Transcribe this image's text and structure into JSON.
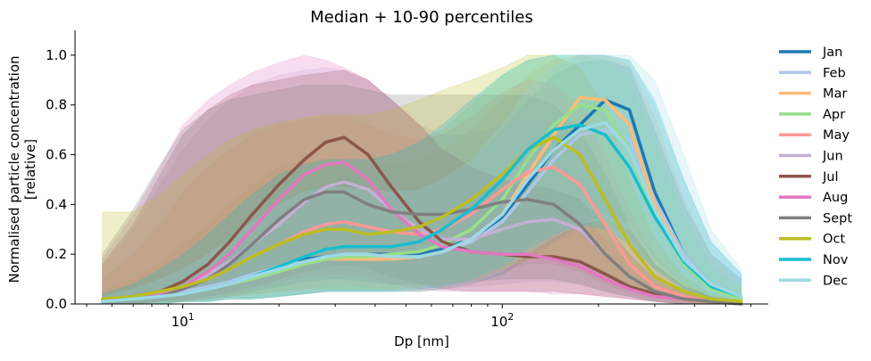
{
  "chart_data": {
    "type": "area",
    "title": "Median + 10-90 percentiles",
    "xlabel": "Dp [nm]",
    "ylabel": "Normalised particle concentration",
    "ylabel2": "[relative]",
    "xscale": "log",
    "xlim": [
      4.6,
      680
    ],
    "ylim": [
      0,
      1.1
    ],
    "yticks": [
      "0.0",
      "0.2",
      "0.4",
      "0.6",
      "0.8",
      "1.0"
    ],
    "xticks": [
      {
        "base": "10",
        "exp": "1"
      },
      {
        "base": "10",
        "exp": "2"
      }
    ],
    "legend_position": "right",
    "grid": false,
    "x": [
      5.6,
      7,
      8.5,
      10,
      12,
      14,
      16.5,
      20,
      24,
      28,
      32,
      38,
      45,
      55,
      65,
      80,
      100,
      120,
      145,
      175,
      210,
      250,
      300,
      370,
      450,
      560
    ],
    "series": [
      {
        "name": "Jan",
        "color": "#1f77b4",
        "median": [
          0.01,
          0.02,
          0.03,
          0.05,
          0.07,
          0.09,
          0.12,
          0.15,
          0.18,
          0.19,
          0.2,
          0.2,
          0.2,
          0.2,
          0.22,
          0.26,
          0.35,
          0.48,
          0.62,
          0.72,
          0.82,
          0.78,
          0.45,
          0.2,
          0.08,
          0.03
        ],
        "p10": [
          0.0,
          0.0,
          0.0,
          0.01,
          0.01,
          0.02,
          0.02,
          0.03,
          0.04,
          0.05,
          0.05,
          0.05,
          0.05,
          0.05,
          0.06,
          0.08,
          0.12,
          0.18,
          0.25,
          0.32,
          0.36,
          0.33,
          0.18,
          0.08,
          0.02,
          0.01
        ],
        "p90": [
          0.03,
          0.06,
          0.1,
          0.14,
          0.2,
          0.26,
          0.33,
          0.4,
          0.45,
          0.48,
          0.48,
          0.46,
          0.45,
          0.46,
          0.5,
          0.58,
          0.7,
          0.82,
          0.92,
          0.97,
          0.98,
          0.95,
          0.7,
          0.4,
          0.2,
          0.1
        ]
      },
      {
        "name": "Feb",
        "color": "#aec7e8",
        "median": [
          0.01,
          0.02,
          0.03,
          0.05,
          0.07,
          0.09,
          0.12,
          0.15,
          0.17,
          0.18,
          0.19,
          0.19,
          0.19,
          0.19,
          0.21,
          0.25,
          0.33,
          0.45,
          0.58,
          0.68,
          0.7,
          0.66,
          0.42,
          0.2,
          0.08,
          0.03
        ],
        "p10": [
          0.0,
          0.0,
          0.0,
          0.01,
          0.01,
          0.02,
          0.02,
          0.03,
          0.04,
          0.05,
          0.05,
          0.05,
          0.05,
          0.05,
          0.06,
          0.08,
          0.12,
          0.18,
          0.24,
          0.3,
          0.34,
          0.32,
          0.18,
          0.08,
          0.03,
          0.01
        ],
        "p90": [
          0.03,
          0.06,
          0.1,
          0.14,
          0.2,
          0.26,
          0.33,
          0.4,
          0.45,
          0.47,
          0.47,
          0.46,
          0.45,
          0.46,
          0.5,
          0.58,
          0.72,
          0.85,
          0.95,
          1.0,
          1.0,
          0.98,
          0.8,
          0.5,
          0.25,
          0.12
        ]
      },
      {
        "name": "Mar",
        "color": "#ffbb78",
        "median": [
          0.01,
          0.02,
          0.03,
          0.04,
          0.06,
          0.08,
          0.1,
          0.13,
          0.16,
          0.18,
          0.18,
          0.18,
          0.18,
          0.19,
          0.21,
          0.26,
          0.36,
          0.52,
          0.68,
          0.83,
          0.82,
          0.72,
          0.4,
          0.18,
          0.07,
          0.02
        ],
        "p10": [
          0.0,
          0.0,
          0.0,
          0.01,
          0.01,
          0.02,
          0.02,
          0.03,
          0.04,
          0.05,
          0.05,
          0.05,
          0.05,
          0.05,
          0.06,
          0.08,
          0.13,
          0.2,
          0.28,
          0.36,
          0.38,
          0.33,
          0.17,
          0.07,
          0.02,
          0.01
        ],
        "p90": [
          0.05,
          0.1,
          0.16,
          0.24,
          0.32,
          0.4,
          0.48,
          0.55,
          0.58,
          0.58,
          0.58,
          0.57,
          0.56,
          0.58,
          0.62,
          0.7,
          0.82,
          0.92,
          0.98,
          1.0,
          1.0,
          0.96,
          0.75,
          0.42,
          0.2,
          0.08
        ]
      },
      {
        "name": "Apr",
        "color": "#98df8a",
        "median": [
          0.01,
          0.02,
          0.03,
          0.04,
          0.06,
          0.08,
          0.1,
          0.13,
          0.16,
          0.18,
          0.19,
          0.19,
          0.2,
          0.21,
          0.24,
          0.3,
          0.42,
          0.58,
          0.72,
          0.8,
          0.78,
          0.62,
          0.35,
          0.16,
          0.06,
          0.02
        ],
        "p10": [
          0.0,
          0.0,
          0.0,
          0.01,
          0.01,
          0.02,
          0.02,
          0.03,
          0.04,
          0.05,
          0.05,
          0.05,
          0.05,
          0.06,
          0.07,
          0.1,
          0.16,
          0.24,
          0.32,
          0.36,
          0.34,
          0.27,
          0.14,
          0.06,
          0.02,
          0.01
        ],
        "p90": [
          0.04,
          0.08,
          0.13,
          0.2,
          0.28,
          0.36,
          0.44,
          0.52,
          0.56,
          0.58,
          0.58,
          0.58,
          0.6,
          0.64,
          0.7,
          0.8,
          0.92,
          0.98,
          1.0,
          1.0,
          0.98,
          0.9,
          0.65,
          0.35,
          0.15,
          0.06
        ]
      },
      {
        "name": "May",
        "color": "#ff9896",
        "median": [
          0.01,
          0.02,
          0.04,
          0.06,
          0.1,
          0.14,
          0.19,
          0.24,
          0.29,
          0.32,
          0.33,
          0.31,
          0.29,
          0.28,
          0.3,
          0.36,
          0.46,
          0.53,
          0.55,
          0.48,
          0.32,
          0.16,
          0.07,
          0.03,
          0.01,
          0.0
        ],
        "p10": [
          0.0,
          0.0,
          0.01,
          0.01,
          0.02,
          0.03,
          0.04,
          0.05,
          0.06,
          0.07,
          0.07,
          0.07,
          0.06,
          0.06,
          0.07,
          0.09,
          0.13,
          0.16,
          0.16,
          0.13,
          0.08,
          0.04,
          0.02,
          0.01,
          0.0,
          0.0
        ],
        "p90": [
          0.1,
          0.2,
          0.32,
          0.45,
          0.55,
          0.62,
          0.68,
          0.72,
          0.74,
          0.75,
          0.75,
          0.72,
          0.68,
          0.66,
          0.68,
          0.75,
          0.85,
          0.9,
          0.88,
          0.8,
          0.6,
          0.38,
          0.2,
          0.08,
          0.03,
          0.01
        ]
      },
      {
        "name": "Jun",
        "color": "#c5b0d5",
        "median": [
          0.01,
          0.02,
          0.04,
          0.07,
          0.12,
          0.17,
          0.24,
          0.32,
          0.41,
          0.47,
          0.49,
          0.46,
          0.38,
          0.3,
          0.26,
          0.26,
          0.3,
          0.33,
          0.34,
          0.3,
          0.2,
          0.11,
          0.05,
          0.02,
          0.01,
          0.0
        ],
        "p10": [
          0.0,
          0.0,
          0.01,
          0.01,
          0.02,
          0.04,
          0.05,
          0.07,
          0.09,
          0.1,
          0.1,
          0.09,
          0.08,
          0.07,
          0.06,
          0.07,
          0.08,
          0.09,
          0.09,
          0.08,
          0.05,
          0.03,
          0.01,
          0.0,
          0.0,
          0.0
        ],
        "p90": [
          0.15,
          0.3,
          0.48,
          0.62,
          0.74,
          0.82,
          0.88,
          0.92,
          0.94,
          0.95,
          0.94,
          0.9,
          0.82,
          0.72,
          0.68,
          0.68,
          0.72,
          0.74,
          0.72,
          0.64,
          0.48,
          0.3,
          0.16,
          0.07,
          0.03,
          0.01
        ]
      },
      {
        "name": "Jul",
        "color": "#8c564b",
        "median": [
          0.01,
          0.03,
          0.05,
          0.09,
          0.16,
          0.25,
          0.36,
          0.48,
          0.58,
          0.65,
          0.67,
          0.6,
          0.47,
          0.33,
          0.25,
          0.21,
          0.2,
          0.19,
          0.19,
          0.17,
          0.12,
          0.07,
          0.04,
          0.02,
          0.01,
          0.0
        ],
        "p10": [
          0.0,
          0.0,
          0.01,
          0.02,
          0.03,
          0.05,
          0.07,
          0.1,
          0.13,
          0.15,
          0.16,
          0.14,
          0.11,
          0.08,
          0.06,
          0.05,
          0.05,
          0.05,
          0.05,
          0.04,
          0.03,
          0.02,
          0.01,
          0.0,
          0.0,
          0.0
        ],
        "p90": [
          0.16,
          0.32,
          0.52,
          0.68,
          0.78,
          0.84,
          0.88,
          0.9,
          0.92,
          0.93,
          0.94,
          0.9,
          0.82,
          0.72,
          0.62,
          0.55,
          0.5,
          0.48,
          0.46,
          0.42,
          0.32,
          0.2,
          0.1,
          0.05,
          0.02,
          0.01
        ]
      },
      {
        "name": "Aug",
        "color": "#e377c2",
        "median": [
          0.01,
          0.02,
          0.04,
          0.07,
          0.13,
          0.2,
          0.3,
          0.42,
          0.52,
          0.56,
          0.57,
          0.5,
          0.38,
          0.28,
          0.23,
          0.21,
          0.2,
          0.2,
          0.18,
          0.15,
          0.1,
          0.06,
          0.03,
          0.02,
          0.01,
          0.0
        ],
        "p10": [
          0.0,
          0.0,
          0.01,
          0.01,
          0.03,
          0.04,
          0.06,
          0.09,
          0.11,
          0.12,
          0.12,
          0.11,
          0.08,
          0.06,
          0.05,
          0.05,
          0.05,
          0.05,
          0.04,
          0.04,
          0.03,
          0.02,
          0.01,
          0.0,
          0.0,
          0.0
        ],
        "p90": [
          0.18,
          0.36,
          0.55,
          0.72,
          0.82,
          0.88,
          0.93,
          0.97,
          1.0,
          0.98,
          0.95,
          0.9,
          0.82,
          0.72,
          0.62,
          0.55,
          0.5,
          0.46,
          0.42,
          0.36,
          0.26,
          0.16,
          0.08,
          0.04,
          0.02,
          0.01
        ]
      },
      {
        "name": "Sept",
        "color": "#7f7f7f",
        "median": [
          0.01,
          0.02,
          0.03,
          0.06,
          0.1,
          0.16,
          0.24,
          0.34,
          0.42,
          0.45,
          0.45,
          0.4,
          0.37,
          0.36,
          0.36,
          0.38,
          0.41,
          0.42,
          0.4,
          0.32,
          0.2,
          0.11,
          0.05,
          0.02,
          0.01,
          0.0
        ],
        "p10": [
          0.0,
          0.0,
          0.01,
          0.01,
          0.02,
          0.03,
          0.05,
          0.07,
          0.09,
          0.1,
          0.1,
          0.09,
          0.08,
          0.08,
          0.08,
          0.09,
          0.1,
          0.1,
          0.1,
          0.08,
          0.05,
          0.03,
          0.01,
          0.0,
          0.0,
          0.0
        ],
        "p90": [
          0.2,
          0.38,
          0.56,
          0.7,
          0.78,
          0.82,
          0.84,
          0.86,
          0.88,
          0.88,
          0.88,
          0.86,
          0.84,
          0.84,
          0.84,
          0.84,
          0.84,
          0.84,
          0.8,
          0.7,
          0.52,
          0.32,
          0.16,
          0.07,
          0.03,
          0.01
        ]
      },
      {
        "name": "Oct",
        "color": "#bcbd22",
        "median": [
          0.02,
          0.03,
          0.05,
          0.07,
          0.1,
          0.14,
          0.19,
          0.24,
          0.28,
          0.3,
          0.3,
          0.28,
          0.29,
          0.31,
          0.35,
          0.42,
          0.52,
          0.62,
          0.67,
          0.6,
          0.42,
          0.24,
          0.11,
          0.05,
          0.02,
          0.01
        ],
        "p10": [
          0.0,
          0.0,
          0.01,
          0.01,
          0.02,
          0.03,
          0.04,
          0.05,
          0.06,
          0.06,
          0.06,
          0.06,
          0.06,
          0.07,
          0.08,
          0.1,
          0.14,
          0.18,
          0.2,
          0.17,
          0.11,
          0.06,
          0.03,
          0.01,
          0.0,
          0.0
        ],
        "p90": [
          0.37,
          0.37,
          0.44,
          0.52,
          0.6,
          0.66,
          0.7,
          0.73,
          0.75,
          0.76,
          0.76,
          0.76,
          0.78,
          0.82,
          0.86,
          0.9,
          0.95,
          1.0,
          1.0,
          0.95,
          0.78,
          0.5,
          0.26,
          0.11,
          0.04,
          0.02
        ]
      },
      {
        "name": "Nov",
        "color": "#17becf",
        "median": [
          0.01,
          0.02,
          0.03,
          0.04,
          0.06,
          0.08,
          0.11,
          0.15,
          0.19,
          0.22,
          0.23,
          0.23,
          0.23,
          0.25,
          0.3,
          0.38,
          0.5,
          0.62,
          0.7,
          0.72,
          0.68,
          0.55,
          0.35,
          0.17,
          0.07,
          0.03
        ],
        "p10": [
          0.0,
          0.0,
          0.0,
          0.01,
          0.01,
          0.02,
          0.02,
          0.03,
          0.04,
          0.05,
          0.05,
          0.05,
          0.05,
          0.06,
          0.07,
          0.1,
          0.15,
          0.22,
          0.28,
          0.32,
          0.3,
          0.24,
          0.14,
          0.06,
          0.02,
          0.01
        ],
        "p90": [
          0.04,
          0.08,
          0.14,
          0.2,
          0.28,
          0.36,
          0.44,
          0.52,
          0.56,
          0.58,
          0.58,
          0.58,
          0.6,
          0.65,
          0.72,
          0.82,
          0.92,
          0.98,
          1.0,
          1.0,
          1.0,
          0.98,
          0.82,
          0.5,
          0.25,
          0.12
        ]
      },
      {
        "name": "Dec",
        "color": "#9edae5",
        "median": [
          0.01,
          0.02,
          0.03,
          0.04,
          0.06,
          0.08,
          0.11,
          0.14,
          0.17,
          0.19,
          0.2,
          0.2,
          0.19,
          0.19,
          0.21,
          0.26,
          0.36,
          0.5,
          0.62,
          0.7,
          0.73,
          0.62,
          0.38,
          0.18,
          0.08,
          0.03
        ],
        "p10": [
          0.0,
          0.0,
          0.0,
          0.01,
          0.01,
          0.02,
          0.02,
          0.03,
          0.04,
          0.05,
          0.05,
          0.05,
          0.05,
          0.05,
          0.06,
          0.08,
          0.13,
          0.2,
          0.27,
          0.32,
          0.34,
          0.3,
          0.17,
          0.08,
          0.03,
          0.01
        ],
        "p90": [
          0.03,
          0.06,
          0.1,
          0.14,
          0.2,
          0.26,
          0.33,
          0.4,
          0.45,
          0.47,
          0.47,
          0.46,
          0.45,
          0.46,
          0.5,
          0.58,
          0.72,
          0.86,
          0.96,
          1.0,
          1.0,
          1.0,
          0.9,
          0.6,
          0.3,
          0.14
        ]
      }
    ]
  }
}
